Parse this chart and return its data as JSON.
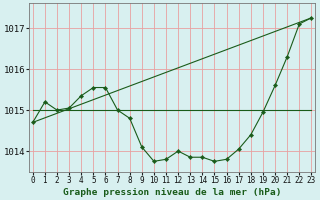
{
  "title": "Graphe pression niveau de la mer (hPa)",
  "bg_color": "#d8f0f0",
  "grid_color_v": "#e8a0a0",
  "grid_color_h": "#e8a0a0",
  "line_color": "#1a5c1a",
  "marker_color": "#1a5c1a",
  "ylim": [
    1013.5,
    1017.6
  ],
  "yticks": [
    1014,
    1015,
    1016,
    1017
  ],
  "xlim": [
    -0.3,
    23.3
  ],
  "xticks": [
    0,
    1,
    2,
    3,
    4,
    5,
    6,
    7,
    8,
    9,
    10,
    11,
    12,
    13,
    14,
    15,
    16,
    17,
    18,
    19,
    20,
    21,
    22,
    23
  ],
  "main_series": [
    1014.7,
    1015.2,
    1015.0,
    1015.05,
    1015.35,
    1015.55,
    1015.55,
    1015.0,
    1014.8,
    1014.1,
    1013.75,
    1013.8,
    1014.0,
    1013.85,
    1013.85,
    1013.75,
    1013.8,
    1014.05,
    1014.4,
    1014.95,
    1015.6,
    1016.3,
    1017.1,
    1017.25
  ],
  "flat_line_x": [
    0,
    23
  ],
  "flat_line_y": [
    1015.0,
    1015.0
  ],
  "diag_line_x": [
    0,
    23
  ],
  "diag_line_y": [
    1014.7,
    1017.25
  ],
  "xlabel_fontsize": 5.5,
  "ylabel_fontsize": 6.5,
  "title_fontsize": 6.8
}
